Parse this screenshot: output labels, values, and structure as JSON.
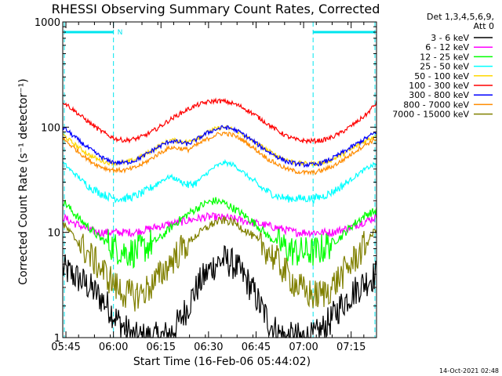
{
  "chart_data": {
    "type": "line",
    "title": "RHESSI Observing Summary Count Rates, Corrected",
    "xlabel": "Start Time (16-Feb-06 05:44:02)",
    "ylabel": "Corrected Count Rate (s⁻¹ detector⁻¹)",
    "x_ticks": [
      "05:45",
      "06:00",
      "06:15",
      "06:30",
      "06:45",
      "07:00",
      "07:15"
    ],
    "x_tick_minutes": [
      1,
      16,
      31,
      46,
      61,
      76,
      91
    ],
    "xlim": [
      0,
      99
    ],
    "yscale": "log",
    "ylim": [
      1,
      1000
    ],
    "y_ticks": [
      "1",
      "10",
      "100",
      "1000"
    ],
    "y_tick_values": [
      1,
      10,
      100,
      1000
    ],
    "detectors": "Det 1,3,4,5,6,9,",
    "attenuator": "Att 0",
    "footer_date": "14-Oct-2021 02:48",
    "night_label": "N",
    "night_bar_color": "#00e5ee",
    "night_intervals": [
      [
        0,
        16.5
      ],
      [
        78.5,
        99
      ]
    ],
    "series": [
      {
        "name": "3 - 6 keV",
        "color": "#000000",
        "values": [
          4.5,
          4.0,
          3.5,
          3.0,
          2.5,
          2.0,
          1.5,
          1.2,
          1.0,
          1.0,
          1.0,
          1.0,
          1.1,
          1.4,
          2.0,
          3.0,
          4.0,
          5.0,
          5.5,
          5.0,
          4.0,
          3.0,
          2.0,
          1.4,
          1.1,
          1.0,
          1.0,
          1.0,
          1.0,
          1.2,
          1.5,
          2.0,
          2.5,
          3.0,
          3.5,
          4.0
        ]
      },
      {
        "name": "6 - 12 keV",
        "color": "#ff00ff",
        "values": [
          14,
          12.5,
          11.5,
          10.5,
          10,
          10,
          10,
          10,
          10,
          10.5,
          11,
          11.5,
          12,
          12.5,
          13,
          13.5,
          14,
          14,
          13.8,
          13.5,
          13,
          12.5,
          12,
          11.5,
          11,
          10.5,
          10,
          10,
          10,
          10,
          10,
          10.5,
          11,
          12,
          13,
          14
        ]
      },
      {
        "name": "12 - 25 keV",
        "color": "#00ff00",
        "values": [
          20,
          16,
          13,
          11,
          9,
          8,
          7,
          6.5,
          6.5,
          7,
          8,
          9,
          11,
          13,
          15,
          17,
          19,
          20,
          19,
          17,
          15,
          13,
          11,
          9,
          8,
          7,
          6.5,
          6.5,
          6.5,
          7,
          8,
          9,
          11,
          13,
          15,
          16
        ]
      },
      {
        "name": "25 - 50 keV",
        "color": "#00ffff",
        "values": [
          46,
          38,
          32,
          27,
          24,
          22,
          21,
          21,
          22,
          24,
          27,
          31,
          34,
          31,
          28,
          30,
          36,
          42,
          46,
          44,
          38,
          32,
          27,
          24,
          22,
          21,
          21,
          21,
          21,
          22,
          24,
          27,
          31,
          36,
          41,
          45
        ]
      },
      {
        "name": "50 - 100 keV",
        "color": "#ffd700",
        "values": [
          85,
          72,
          62,
          54,
          49,
          46,
          46,
          46,
          49,
          54,
          60,
          68,
          75,
          74,
          72,
          79,
          88,
          96,
          100,
          96,
          86,
          76,
          67,
          59,
          53,
          49,
          46,
          45,
          45,
          46,
          49,
          54,
          60,
          68,
          76,
          84
        ]
      },
      {
        "name": "100 - 300 keV",
        "color": "#ff0000",
        "values": [
          175,
          150,
          128,
          110,
          95,
          84,
          77,
          75,
          77,
          82,
          91,
          103,
          118,
          133,
          148,
          162,
          172,
          178,
          176,
          168,
          155,
          138,
          121,
          105,
          92,
          82,
          76,
          74,
          74,
          75,
          80,
          88,
          100,
          115,
          135,
          170
        ]
      },
      {
        "name": "300 - 800 keV",
        "color": "#0000ff",
        "values": [
          100,
          85,
          72,
          62,
          54,
          48,
          46,
          46,
          48,
          53,
          60,
          67,
          74,
          72,
          69,
          77,
          87,
          95,
          100,
          96,
          87,
          76,
          66,
          58,
          52,
          47,
          45,
          44,
          44,
          46,
          50,
          56,
          63,
          71,
          80,
          90
        ]
      },
      {
        "name": "800 - 7000 keV",
        "color": "#ff8c00",
        "values": [
          78,
          66,
          56,
          48,
          43,
          40,
          39,
          39,
          41,
          45,
          51,
          58,
          64,
          63,
          61,
          68,
          76,
          84,
          88,
          84,
          76,
          66,
          57,
          49,
          44,
          40,
          38,
          37,
          37,
          39,
          42,
          47,
          54,
          62,
          70,
          78
        ]
      },
      {
        "name": "7000 - 15000 keV",
        "color": "#808000",
        "values": [
          12,
          9.5,
          7.5,
          6,
          4.8,
          3.8,
          3.0,
          2.6,
          2.5,
          2.7,
          3.2,
          4.0,
          5.2,
          6.5,
          8,
          9.5,
          11,
          12.5,
          13,
          12.5,
          11,
          9.5,
          8,
          6.5,
          5.2,
          4.0,
          3.2,
          2.7,
          2.5,
          2.6,
          3.0,
          3.8,
          4.8,
          6.2,
          8,
          11
        ]
      }
    ]
  }
}
